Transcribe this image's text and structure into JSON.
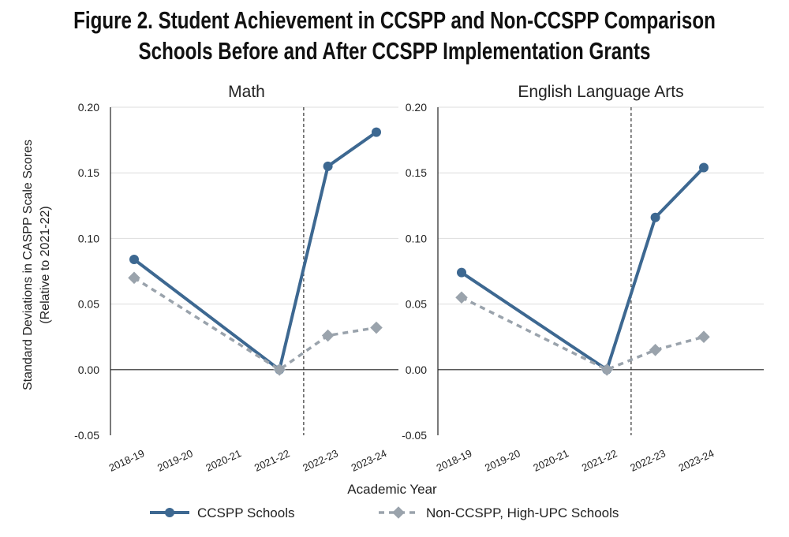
{
  "title_line1": "Figure 2. Student Achievement in CCSPP and Non-CCSPP Comparison",
  "title_line2": "Schools Before and After CCSPP Implementation Grants",
  "chart_data": [
    {
      "type": "line",
      "title": "Math",
      "categories": [
        "2018-19",
        "2019-20",
        "2020-21",
        "2021-22",
        "2022-23",
        "2023-24"
      ],
      "ylabel": "Standard Deviations in CASPP Scale Scores (Relative to 2021-22)",
      "xlabel": "Academic Year",
      "ylim": [
        -0.05,
        0.2
      ],
      "yticks": [
        "0.20",
        "0.15",
        "0.10",
        "0.05",
        "0.00",
        "-0.05"
      ],
      "grid": true,
      "vline_between": [
        "2021-22",
        "2022-23"
      ],
      "series": [
        {
          "name": "CCSPP Schools",
          "color": "#3d6891",
          "marker": "circle",
          "style": "solid",
          "values": [
            0.084,
            null,
            null,
            0.0,
            0.155,
            0.181
          ]
        },
        {
          "name": "Non-CCSPP, High-UPC Schools",
          "color": "#9aa3ac",
          "marker": "diamond",
          "style": "dashed",
          "values": [
            0.07,
            null,
            null,
            0.0,
            0.026,
            0.032
          ]
        }
      ]
    },
    {
      "type": "line",
      "title": "English Language Arts",
      "categories": [
        "2018-19",
        "2019-20",
        "2020-21",
        "2021-22",
        "2022-23",
        "2023-24"
      ],
      "ylim": [
        -0.05,
        0.2
      ],
      "yticks": [
        "0.20",
        "0.15",
        "0.10",
        "0.05",
        "0.00",
        "-0.05"
      ],
      "grid": true,
      "vline_between": [
        "2021-22",
        "2022-23"
      ],
      "series": [
        {
          "name": "CCSPP Schools",
          "color": "#3d6891",
          "marker": "circle",
          "style": "solid",
          "values": [
            0.074,
            null,
            null,
            0.0,
            0.116,
            0.154
          ]
        },
        {
          "name": "Non-CCSPP, High-UPC Schools",
          "color": "#9aa3ac",
          "marker": "diamond",
          "style": "dashed",
          "values": [
            0.055,
            null,
            null,
            0.0,
            0.015,
            0.025
          ]
        }
      ]
    }
  ],
  "legend": {
    "placement": "bottom",
    "items": [
      "CCSPP Schools",
      "Non-CCSPP, High-UPC Schools"
    ]
  }
}
